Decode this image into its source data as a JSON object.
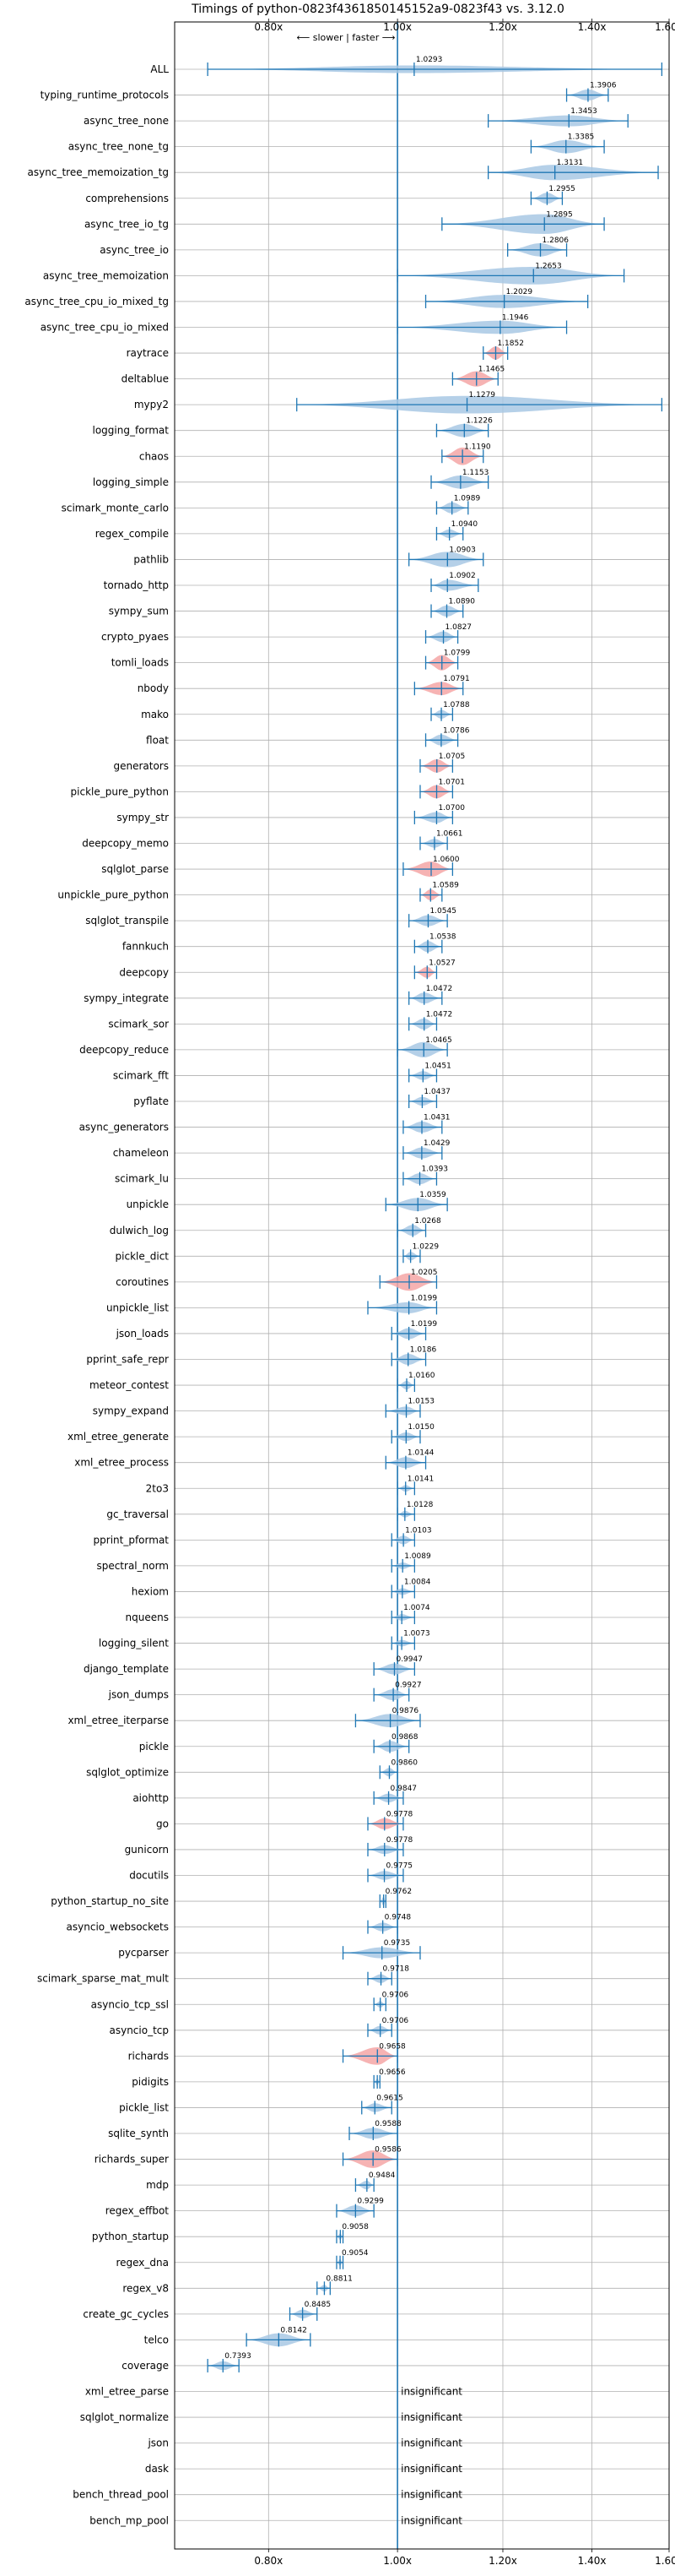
{
  "chart_data": {
    "type": "violin",
    "title": "Timings of python-0823f4361850145152a9-0823f43 vs. 3.12.0",
    "direction_label": "⟵ slower | faster ⟶",
    "xscale": "log",
    "xlim": [
      0.68,
      1.6
    ],
    "xticks": [
      {
        "value": 0.8,
        "label": "0.80x"
      },
      {
        "value": 1.0,
        "label": "1.00x"
      },
      {
        "value": 1.2,
        "label": "1.20x"
      },
      {
        "value": 1.4,
        "label": "1.40x"
      },
      {
        "value": 1.6,
        "label": "1.60x"
      }
    ],
    "grid": true,
    "insignificant_label": "insignificant",
    "colors": {
      "faster": "#a8c8e4",
      "slower": "#f4a6a6",
      "line": "#1f77b4"
    },
    "benchmarks": [
      {
        "name": "ALL",
        "value": 1.0293,
        "lo": 0.72,
        "hi": 1.58,
        "width": 0.35,
        "kind": "faster"
      },
      {
        "name": "typing_runtime_protocols",
        "value": 1.3906,
        "lo": 1.34,
        "hi": 1.44,
        "width": 0.5,
        "kind": "faster"
      },
      {
        "name": "async_tree_none",
        "value": 1.3453,
        "lo": 1.17,
        "hi": 1.49,
        "width": 0.5,
        "kind": "faster"
      },
      {
        "name": "async_tree_none_tg",
        "value": 1.3385,
        "lo": 1.26,
        "hi": 1.43,
        "width": 0.6,
        "kind": "faster"
      },
      {
        "name": "async_tree_memoization_tg",
        "value": 1.3131,
        "lo": 1.17,
        "hi": 1.57,
        "width": 0.7,
        "kind": "faster"
      },
      {
        "name": "comprehensions",
        "value": 1.2955,
        "lo": 1.26,
        "hi": 1.33,
        "width": 0.5,
        "kind": "faster"
      },
      {
        "name": "async_tree_io_tg",
        "value": 1.2895,
        "lo": 1.08,
        "hi": 1.43,
        "width": 0.9,
        "kind": "faster"
      },
      {
        "name": "async_tree_io",
        "value": 1.2806,
        "lo": 1.21,
        "hi": 1.34,
        "width": 0.6,
        "kind": "faster"
      },
      {
        "name": "async_tree_memoization",
        "value": 1.2653,
        "lo": 1.0,
        "hi": 1.48,
        "width": 0.8,
        "kind": "faster"
      },
      {
        "name": "async_tree_cpu_io_mixed_tg",
        "value": 1.2029,
        "lo": 1.05,
        "hi": 1.39,
        "width": 0.6,
        "kind": "faster"
      },
      {
        "name": "async_tree_cpu_io_mixed",
        "value": 1.1946,
        "lo": 1.0,
        "hi": 1.34,
        "width": 0.6,
        "kind": "faster"
      },
      {
        "name": "raytrace",
        "value": 1.1852,
        "lo": 1.16,
        "hi": 1.21,
        "width": 0.6,
        "kind": "slower"
      },
      {
        "name": "deltablue",
        "value": 1.1465,
        "lo": 1.1,
        "hi": 1.19,
        "width": 0.7,
        "kind": "slower"
      },
      {
        "name": "mypy2",
        "value": 1.1279,
        "lo": 0.84,
        "hi": 1.58,
        "width": 0.8,
        "kind": "faster"
      },
      {
        "name": "logging_format",
        "value": 1.1226,
        "lo": 1.07,
        "hi": 1.17,
        "width": 0.6,
        "kind": "faster"
      },
      {
        "name": "chaos",
        "value": 1.119,
        "lo": 1.08,
        "hi": 1.16,
        "width": 0.8,
        "kind": "slower"
      },
      {
        "name": "logging_simple",
        "value": 1.1153,
        "lo": 1.06,
        "hi": 1.17,
        "width": 0.6,
        "kind": "faster"
      },
      {
        "name": "scimark_monte_carlo",
        "value": 1.0989,
        "lo": 1.07,
        "hi": 1.13,
        "width": 0.5,
        "kind": "faster"
      },
      {
        "name": "regex_compile",
        "value": 1.094,
        "lo": 1.07,
        "hi": 1.12,
        "width": 0.4,
        "kind": "faster"
      },
      {
        "name": "pathlib",
        "value": 1.0903,
        "lo": 1.02,
        "hi": 1.16,
        "width": 0.7,
        "kind": "faster"
      },
      {
        "name": "tornado_http",
        "value": 1.0902,
        "lo": 1.06,
        "hi": 1.15,
        "width": 0.5,
        "kind": "faster"
      },
      {
        "name": "sympy_sum",
        "value": 1.089,
        "lo": 1.06,
        "hi": 1.12,
        "width": 0.5,
        "kind": "faster"
      },
      {
        "name": "crypto_pyaes",
        "value": 1.0827,
        "lo": 1.05,
        "hi": 1.11,
        "width": 0.5,
        "kind": "faster"
      },
      {
        "name": "tomli_loads",
        "value": 1.0799,
        "lo": 1.05,
        "hi": 1.11,
        "width": 0.7,
        "kind": "slower"
      },
      {
        "name": "nbody",
        "value": 1.0791,
        "lo": 1.03,
        "hi": 1.12,
        "width": 0.6,
        "kind": "slower"
      },
      {
        "name": "mako",
        "value": 1.0788,
        "lo": 1.06,
        "hi": 1.1,
        "width": 0.4,
        "kind": "faster"
      },
      {
        "name": "float",
        "value": 1.0786,
        "lo": 1.05,
        "hi": 1.11,
        "width": 0.5,
        "kind": "faster"
      },
      {
        "name": "generators",
        "value": 1.0705,
        "lo": 1.04,
        "hi": 1.1,
        "width": 0.6,
        "kind": "slower"
      },
      {
        "name": "pickle_pure_python",
        "value": 1.0701,
        "lo": 1.04,
        "hi": 1.1,
        "width": 0.6,
        "kind": "slower"
      },
      {
        "name": "sympy_str",
        "value": 1.07,
        "lo": 1.03,
        "hi": 1.1,
        "width": 0.5,
        "kind": "faster"
      },
      {
        "name": "deepcopy_memo",
        "value": 1.0661,
        "lo": 1.04,
        "hi": 1.09,
        "width": 0.4,
        "kind": "faster"
      },
      {
        "name": "sqlglot_parse",
        "value": 1.06,
        "lo": 1.01,
        "hi": 1.1,
        "width": 0.7,
        "kind": "slower"
      },
      {
        "name": "unpickle_pure_python",
        "value": 1.0589,
        "lo": 1.04,
        "hi": 1.08,
        "width": 0.5,
        "kind": "slower"
      },
      {
        "name": "sqlglot_transpile",
        "value": 1.0545,
        "lo": 1.02,
        "hi": 1.09,
        "width": 0.5,
        "kind": "faster"
      },
      {
        "name": "fannkuch",
        "value": 1.0538,
        "lo": 1.03,
        "hi": 1.08,
        "width": 0.5,
        "kind": "faster"
      },
      {
        "name": "deepcopy",
        "value": 1.0527,
        "lo": 1.03,
        "hi": 1.07,
        "width": 0.5,
        "kind": "slower"
      },
      {
        "name": "sympy_integrate",
        "value": 1.0472,
        "lo": 1.02,
        "hi": 1.08,
        "width": 0.5,
        "kind": "faster"
      },
      {
        "name": "scimark_sor",
        "value": 1.0472,
        "lo": 1.02,
        "hi": 1.07,
        "width": 0.5,
        "kind": "faster"
      },
      {
        "name": "deepcopy_reduce",
        "value": 1.0465,
        "lo": 1.0,
        "hi": 1.09,
        "width": 0.7,
        "kind": "faster"
      },
      {
        "name": "scimark_fft",
        "value": 1.0451,
        "lo": 1.02,
        "hi": 1.07,
        "width": 0.4,
        "kind": "faster"
      },
      {
        "name": "pyflate",
        "value": 1.0437,
        "lo": 1.02,
        "hi": 1.07,
        "width": 0.4,
        "kind": "faster"
      },
      {
        "name": "async_generators",
        "value": 1.0431,
        "lo": 1.01,
        "hi": 1.08,
        "width": 0.5,
        "kind": "faster"
      },
      {
        "name": "chameleon",
        "value": 1.0429,
        "lo": 1.01,
        "hi": 1.08,
        "width": 0.5,
        "kind": "faster"
      },
      {
        "name": "scimark_lu",
        "value": 1.0393,
        "lo": 1.01,
        "hi": 1.07,
        "width": 0.5,
        "kind": "faster"
      },
      {
        "name": "unpickle",
        "value": 1.0359,
        "lo": 0.98,
        "hi": 1.09,
        "width": 0.6,
        "kind": "faster"
      },
      {
        "name": "dulwich_log",
        "value": 1.0268,
        "lo": 1.0,
        "hi": 1.05,
        "width": 0.5,
        "kind": "faster"
      },
      {
        "name": "pickle_dict",
        "value": 1.0229,
        "lo": 1.01,
        "hi": 1.04,
        "width": 0.4,
        "kind": "faster"
      },
      {
        "name": "coroutines",
        "value": 1.0205,
        "lo": 0.97,
        "hi": 1.07,
        "width": 0.8,
        "kind": "slower"
      },
      {
        "name": "unpickle_list",
        "value": 1.0199,
        "lo": 0.95,
        "hi": 1.07,
        "width": 0.5,
        "kind": "faster"
      },
      {
        "name": "json_loads",
        "value": 1.0199,
        "lo": 0.99,
        "hi": 1.05,
        "width": 0.5,
        "kind": "faster"
      },
      {
        "name": "pprint_safe_repr",
        "value": 1.0186,
        "lo": 0.99,
        "hi": 1.05,
        "width": 0.5,
        "kind": "faster"
      },
      {
        "name": "meteor_contest",
        "value": 1.016,
        "lo": 1.0,
        "hi": 1.03,
        "width": 0.4,
        "kind": "faster"
      },
      {
        "name": "sympy_expand",
        "value": 1.0153,
        "lo": 0.98,
        "hi": 1.04,
        "width": 0.4,
        "kind": "faster"
      },
      {
        "name": "xml_etree_generate",
        "value": 1.015,
        "lo": 0.99,
        "hi": 1.04,
        "width": 0.4,
        "kind": "faster"
      },
      {
        "name": "xml_etree_process",
        "value": 1.0144,
        "lo": 0.98,
        "hi": 1.05,
        "width": 0.5,
        "kind": "faster"
      },
      {
        "name": "2to3",
        "value": 1.0141,
        "lo": 1.0,
        "hi": 1.03,
        "width": 0.3,
        "kind": "faster"
      },
      {
        "name": "gc_traversal",
        "value": 1.0128,
        "lo": 1.0,
        "hi": 1.03,
        "width": 0.3,
        "kind": "faster"
      },
      {
        "name": "pprint_pformat",
        "value": 1.0103,
        "lo": 0.99,
        "hi": 1.03,
        "width": 0.4,
        "kind": "faster"
      },
      {
        "name": "spectral_norm",
        "value": 1.0089,
        "lo": 0.99,
        "hi": 1.03,
        "width": 0.3,
        "kind": "faster"
      },
      {
        "name": "hexiom",
        "value": 1.0084,
        "lo": 0.99,
        "hi": 1.03,
        "width": 0.3,
        "kind": "faster"
      },
      {
        "name": "nqueens",
        "value": 1.0074,
        "lo": 0.99,
        "hi": 1.03,
        "width": 0.3,
        "kind": "faster"
      },
      {
        "name": "logging_silent",
        "value": 1.0073,
        "lo": 0.99,
        "hi": 1.03,
        "width": 0.3,
        "kind": "faster"
      },
      {
        "name": "django_template",
        "value": 0.9947,
        "lo": 0.96,
        "hi": 1.03,
        "width": 0.5,
        "kind": "faster"
      },
      {
        "name": "json_dumps",
        "value": 0.9927,
        "lo": 0.96,
        "hi": 1.02,
        "width": 0.5,
        "kind": "faster"
      },
      {
        "name": "xml_etree_iterparse",
        "value": 0.9876,
        "lo": 0.93,
        "hi": 1.04,
        "width": 0.6,
        "kind": "faster"
      },
      {
        "name": "pickle",
        "value": 0.9868,
        "lo": 0.96,
        "hi": 1.02,
        "width": 0.5,
        "kind": "faster"
      },
      {
        "name": "sqlglot_optimize",
        "value": 0.986,
        "lo": 0.97,
        "hi": 1.0,
        "width": 0.4,
        "kind": "faster"
      },
      {
        "name": "aiohttp",
        "value": 0.9847,
        "lo": 0.96,
        "hi": 1.01,
        "width": 0.4,
        "kind": "faster"
      },
      {
        "name": "go",
        "value": 0.9778,
        "lo": 0.95,
        "hi": 1.01,
        "width": 0.5,
        "kind": "slower"
      },
      {
        "name": "gunicorn",
        "value": 0.9778,
        "lo": 0.95,
        "hi": 1.01,
        "width": 0.4,
        "kind": "faster"
      },
      {
        "name": "docutils",
        "value": 0.9775,
        "lo": 0.95,
        "hi": 1.01,
        "width": 0.4,
        "kind": "faster"
      },
      {
        "name": "python_startup_no_site",
        "value": 0.9762,
        "lo": 0.97,
        "hi": 0.98,
        "width": 0.4,
        "kind": "faster"
      },
      {
        "name": "asyncio_websockets",
        "value": 0.9748,
        "lo": 0.95,
        "hi": 1.0,
        "width": 0.4,
        "kind": "faster"
      },
      {
        "name": "pycparser",
        "value": 0.9735,
        "lo": 0.91,
        "hi": 1.04,
        "width": 0.5,
        "kind": "faster"
      },
      {
        "name": "scimark_sparse_mat_mult",
        "value": 0.9718,
        "lo": 0.95,
        "hi": 0.99,
        "width": 0.4,
        "kind": "faster"
      },
      {
        "name": "asyncio_tcp_ssl",
        "value": 0.9706,
        "lo": 0.96,
        "hi": 0.98,
        "width": 0.3,
        "kind": "faster"
      },
      {
        "name": "asyncio_tcp",
        "value": 0.9706,
        "lo": 0.95,
        "hi": 0.99,
        "width": 0.4,
        "kind": "faster"
      },
      {
        "name": "richards",
        "value": 0.9658,
        "lo": 0.91,
        "hi": 1.0,
        "width": 0.8,
        "kind": "slower"
      },
      {
        "name": "pidigits",
        "value": 0.9656,
        "lo": 0.96,
        "hi": 0.97,
        "width": 0.3,
        "kind": "faster"
      },
      {
        "name": "pickle_list",
        "value": 0.9615,
        "lo": 0.94,
        "hi": 0.99,
        "width": 0.4,
        "kind": "faster"
      },
      {
        "name": "sqlite_synth",
        "value": 0.9588,
        "lo": 0.92,
        "hi": 1.0,
        "width": 0.5,
        "kind": "faster"
      },
      {
        "name": "richards_super",
        "value": 0.9586,
        "lo": 0.91,
        "hi": 1.0,
        "width": 0.8,
        "kind": "slower"
      },
      {
        "name": "mdp",
        "value": 0.9484,
        "lo": 0.93,
        "hi": 0.96,
        "width": 0.4,
        "kind": "faster"
      },
      {
        "name": "regex_effbot",
        "value": 0.9299,
        "lo": 0.9,
        "hi": 0.96,
        "width": 0.5,
        "kind": "faster"
      },
      {
        "name": "python_startup",
        "value": 0.9058,
        "lo": 0.9,
        "hi": 0.91,
        "width": 0.3,
        "kind": "faster"
      },
      {
        "name": "regex_dna",
        "value": 0.9054,
        "lo": 0.9,
        "hi": 0.91,
        "width": 0.3,
        "kind": "faster"
      },
      {
        "name": "regex_v8",
        "value": 0.8811,
        "lo": 0.87,
        "hi": 0.89,
        "width": 0.3,
        "kind": "faster"
      },
      {
        "name": "create_gc_cycles",
        "value": 0.8485,
        "lo": 0.83,
        "hi": 0.87,
        "width": 0.4,
        "kind": "faster"
      },
      {
        "name": "telco",
        "value": 0.8142,
        "lo": 0.77,
        "hi": 0.86,
        "width": 0.6,
        "kind": "faster"
      },
      {
        "name": "coverage",
        "value": 0.7393,
        "lo": 0.72,
        "hi": 0.76,
        "width": 0.4,
        "kind": "faster"
      },
      {
        "name": "xml_etree_parse",
        "insignificant": true
      },
      {
        "name": "sqlglot_normalize",
        "insignificant": true
      },
      {
        "name": "json",
        "insignificant": true
      },
      {
        "name": "dask",
        "insignificant": true
      },
      {
        "name": "bench_thread_pool",
        "insignificant": true
      },
      {
        "name": "bench_mp_pool",
        "insignificant": true
      }
    ]
  }
}
